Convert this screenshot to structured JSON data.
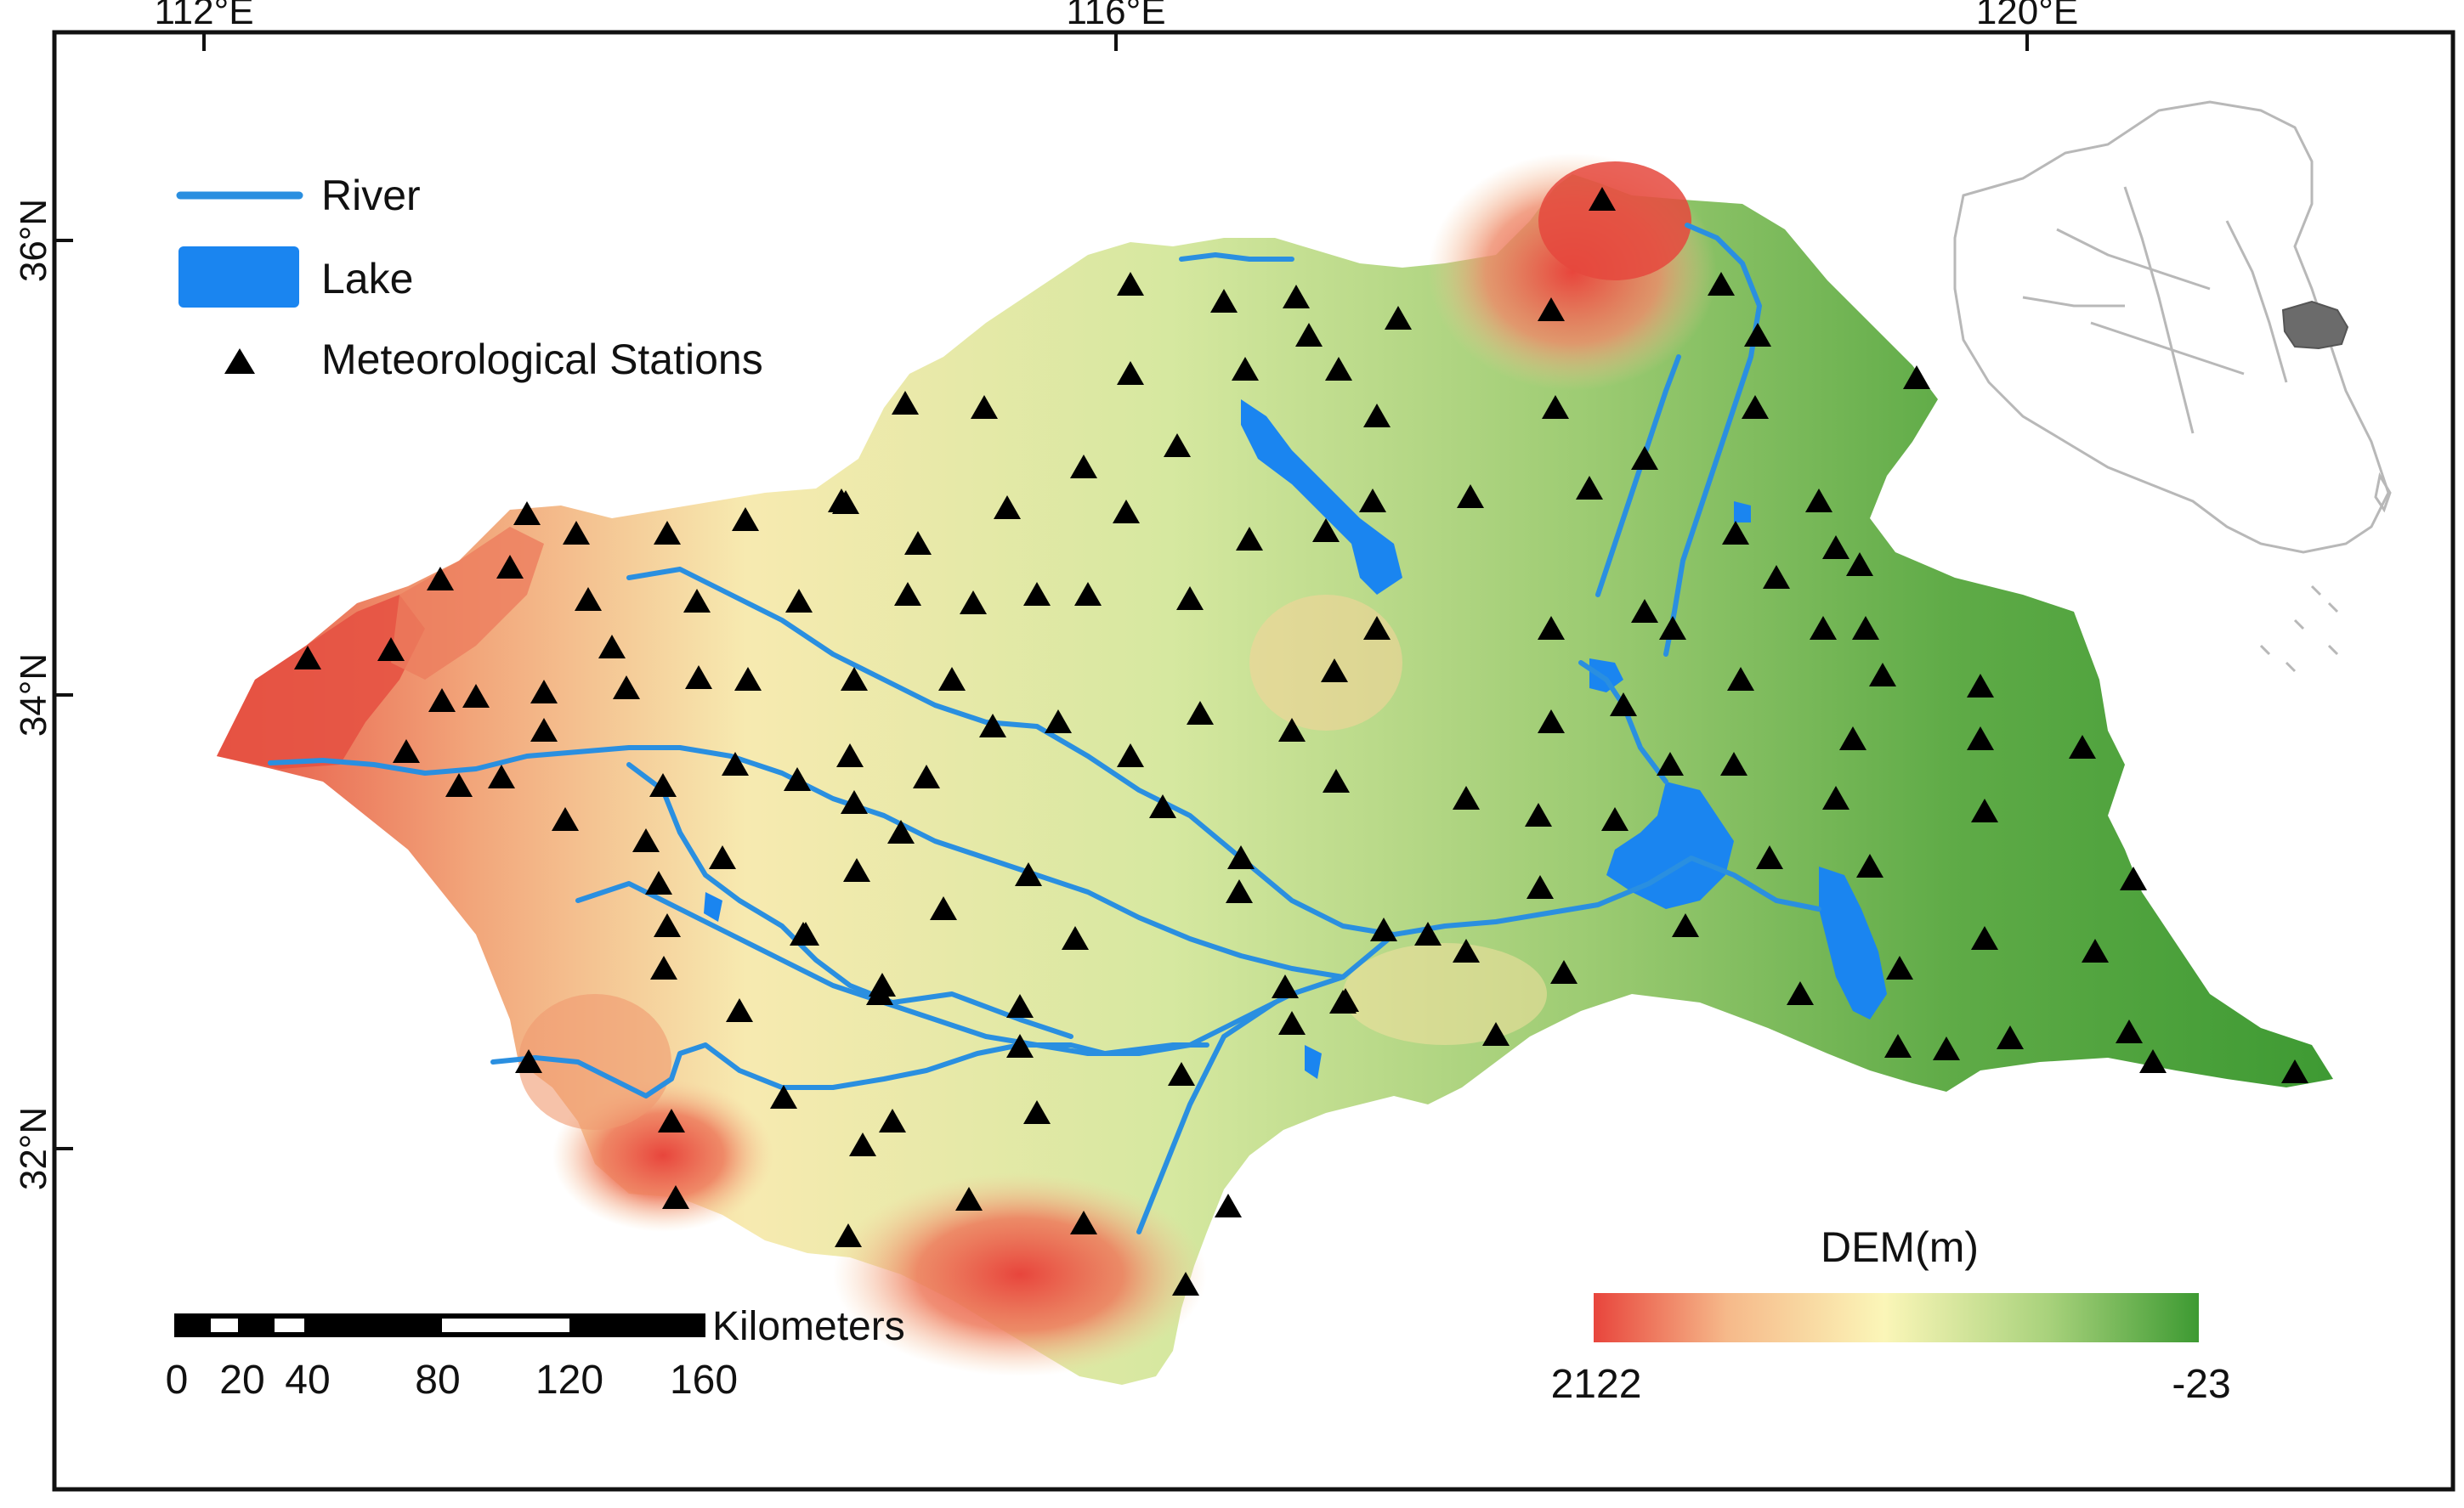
{
  "axes": {
    "top_ticks": [
      "112°E",
      "116°E",
      "120°E"
    ],
    "left_ticks": [
      "36°N",
      "34°N",
      "32°N"
    ]
  },
  "legend": {
    "river": "River",
    "lake": "Lake",
    "stations": "Meteorological Stations"
  },
  "colorbar": {
    "title": "DEM(m)",
    "max_label": "2122",
    "min_label": "-23",
    "colors": [
      "#e8453c",
      "#f6b98a",
      "#fbf6b8",
      "#a9d27c",
      "#3d9a32"
    ]
  },
  "scalebar": {
    "unit": "Kilometers",
    "ticks": [
      "0",
      "20",
      "40",
      "80",
      "120",
      "160"
    ]
  },
  "colors": {
    "river": "#2a8fe0",
    "lake": "#1a85f0",
    "station": "#000000",
    "inset_highlight": "#6b6b6b",
    "inset_outline": "#b8b8b8"
  },
  "station_count": 150
}
